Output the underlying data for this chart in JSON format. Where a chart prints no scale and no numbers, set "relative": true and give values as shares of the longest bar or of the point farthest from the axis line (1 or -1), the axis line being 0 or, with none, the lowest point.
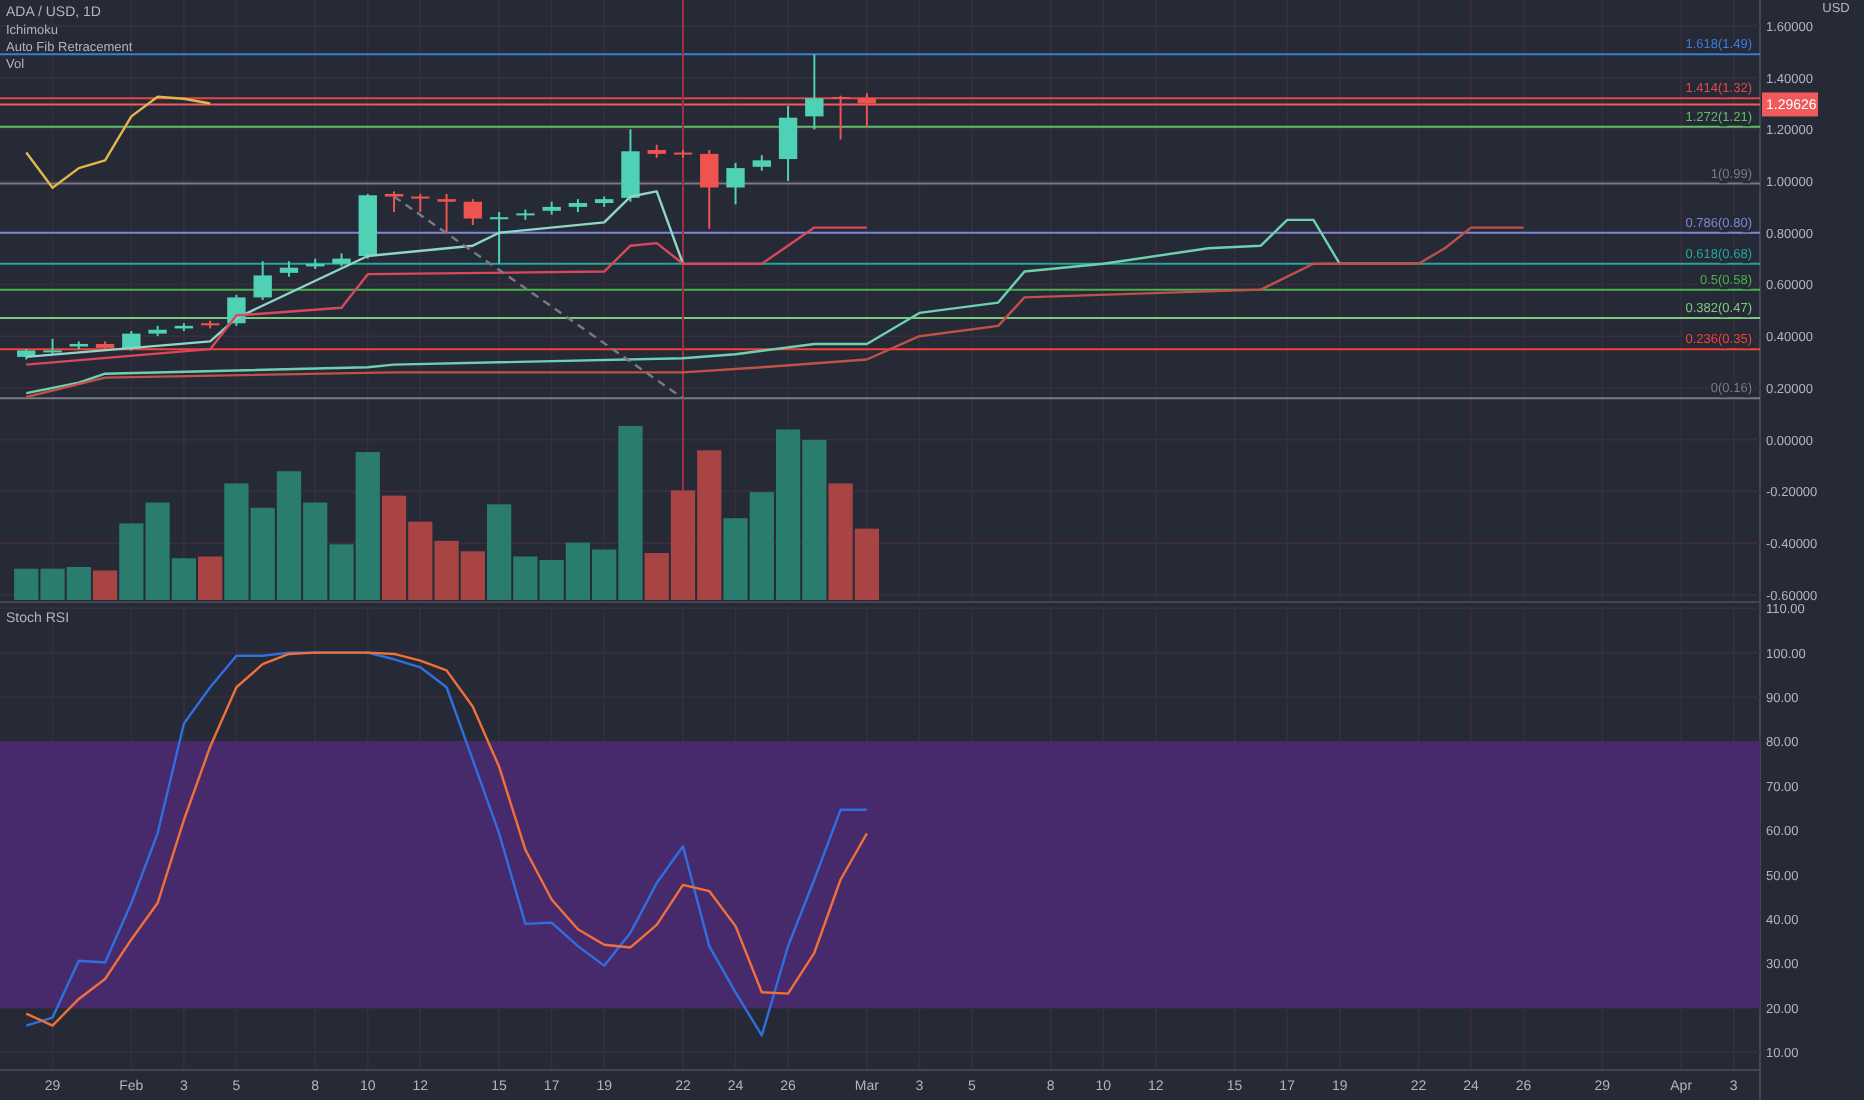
{
  "chart_data": [
    {
      "type": "candlestick",
      "title": "ADA / USD, 1D",
      "ylabel": "USD",
      "annotations": [
        "Ichimoku",
        "Auto Fib Retracement",
        "Vol"
      ],
      "x": [
        "--01-28",
        "--01-29",
        "--01-30",
        "--01-31",
        "--02-01",
        "--02-02",
        "--02-03",
        "--02-04",
        "--02-05",
        "--02-06",
        "--02-07",
        "--02-08",
        "--02-09",
        "--02-10",
        "--02-11",
        "--02-12",
        "--02-13",
        "--02-14",
        "--02-15",
        "--02-16",
        "--02-17",
        "--02-18",
        "--02-19",
        "--02-20",
        "--02-21",
        "--02-22",
        "--02-23",
        "--02-24",
        "--02-25",
        "--02-26",
        "--02-27",
        "--02-28",
        "--03-01"
      ],
      "ohlc": [
        [
          0.32,
          0.35,
          0.31,
          0.345
        ],
        [
          0.34,
          0.39,
          0.33,
          0.345
        ],
        [
          0.36,
          0.38,
          0.35,
          0.37
        ],
        [
          0.37,
          0.38,
          0.35,
          0.355
        ],
        [
          0.352,
          0.42,
          0.345,
          0.41
        ],
        [
          0.41,
          0.44,
          0.4,
          0.425
        ],
        [
          0.43,
          0.45,
          0.42,
          0.44
        ],
        [
          0.45,
          0.46,
          0.43,
          0.445
        ],
        [
          0.45,
          0.56,
          0.44,
          0.55
        ],
        [
          0.55,
          0.69,
          0.54,
          0.635
        ],
        [
          0.645,
          0.69,
          0.63,
          0.665
        ],
        [
          0.67,
          0.7,
          0.66,
          0.68
        ],
        [
          0.68,
          0.72,
          0.67,
          0.7
        ],
        [
          0.71,
          0.95,
          0.7,
          0.945
        ],
        [
          0.95,
          0.96,
          0.88,
          0.94
        ],
        [
          0.94,
          0.95,
          0.88,
          0.935
        ],
        [
          0.93,
          0.95,
          0.8,
          0.92
        ],
        [
          0.92,
          0.93,
          0.83,
          0.855
        ],
        [
          0.855,
          0.88,
          0.68,
          0.86
        ],
        [
          0.87,
          0.89,
          0.85,
          0.875
        ],
        [
          0.885,
          0.92,
          0.87,
          0.9
        ],
        [
          0.9,
          0.93,
          0.88,
          0.915
        ],
        [
          0.915,
          0.94,
          0.9,
          0.93
        ],
        [
          0.935,
          1.2,
          0.92,
          1.115
        ],
        [
          1.12,
          1.14,
          1.09,
          1.105
        ],
        [
          1.11,
          1.12,
          1.09,
          1.105
        ],
        [
          1.105,
          1.12,
          0.815,
          0.975
        ],
        [
          0.975,
          1.07,
          0.91,
          1.05
        ],
        [
          1.055,
          1.1,
          1.04,
          1.08
        ],
        [
          1.085,
          1.29,
          1.0,
          1.245
        ],
        [
          1.25,
          1.49,
          1.2,
          1.32
        ],
        [
          1.325,
          1.33,
          1.16,
          1.32
        ],
        [
          1.32,
          1.34,
          1.21,
          1.3
        ]
      ],
      "colors": [
        "#4fd1b5",
        "#4fd1b5",
        "#4fd1b5",
        "#ef5350",
        "#4fd1b5",
        "#4fd1b5",
        "#4fd1b5",
        "#ef5350",
        "#4fd1b5",
        "#4fd1b5",
        "#4fd1b5",
        "#4fd1b5",
        "#4fd1b5",
        "#4fd1b5",
        "#ef5350",
        "#ef5350",
        "#ef5350",
        "#ef5350",
        "#4fd1b5",
        "#4fd1b5",
        "#4fd1b5",
        "#4fd1b5",
        "#4fd1b5",
        "#4fd1b5",
        "#ef5350",
        "#ef5350",
        "#ef5350",
        "#4fd1b5",
        "#4fd1b5",
        "#4fd1b5",
        "#4fd1b5",
        "#ef5350",
        "#ef5350"
      ],
      "series": [
        {
          "type": "line",
          "color": "#e0b84a",
          "x": [
            "--01-28",
            "--01-29",
            "--01-30",
            "--01-31",
            "--02-01",
            "--02-02",
            "--02-03",
            "--02-04"
          ],
          "values": [
            1.11,
            0.974,
            1.05,
            1.08,
            1.25,
            1.326,
            1.318,
            1.3
          ]
        },
        {
          "type": "line",
          "color": "#8fd6c6",
          "x": [
            "--01-28",
            "--02-04",
            "--02-05",
            "--02-10",
            "--02-14",
            "--02-15",
            "--02-19",
            "--02-20",
            "--02-21",
            "--02-22"
          ],
          "values": [
            0.32,
            0.38,
            0.47,
            0.71,
            0.75,
            0.8,
            0.84,
            0.94,
            0.96,
            0.68
          ]
        },
        {
          "type": "line",
          "color": "#d9485a",
          "x": [
            "--01-28",
            "--02-04",
            "--02-05",
            "--02-09",
            "--02-10",
            "--02-19",
            "--02-20",
            "--02-21",
            "--02-22",
            "--02-25",
            "--02-27",
            "--03-01"
          ],
          "values": [
            0.29,
            0.35,
            0.48,
            0.51,
            0.64,
            0.65,
            0.75,
            0.76,
            0.68,
            0.68,
            0.82,
            0.82
          ]
        },
        {
          "type": "line",
          "color": "#6fd0b0",
          "x": [
            "--01-28",
            "--01-30",
            "--01-31",
            "--02-10",
            "--02-11",
            "--02-22",
            "--02-24",
            "--02-27",
            "--03-01",
            "--03-03",
            "--03-06",
            "--03-07",
            "--03-10",
            "--03-14",
            "--03-16",
            "--03-17",
            "--03-18",
            "--03-19",
            "--03-22"
          ],
          "values": [
            0.18,
            0.22,
            0.255,
            0.28,
            0.29,
            0.315,
            0.33,
            0.37,
            0.37,
            0.49,
            0.53,
            0.65,
            0.68,
            0.74,
            0.75,
            0.85,
            0.85,
            0.68,
            0.68
          ]
        },
        {
          "type": "line",
          "color": "#c0504a",
          "x": [
            "--01-28",
            "--01-31",
            "--02-11",
            "--02-22",
            "--02-25",
            "--03-01",
            "--03-03",
            "--03-06",
            "--03-07",
            "--03-16",
            "--03-18",
            "--03-22",
            "--03-23",
            "--03-24",
            "--03-26"
          ],
          "values": [
            0.165,
            0.24,
            0.26,
            0.26,
            0.28,
            0.31,
            0.4,
            0.44,
            0.55,
            0.58,
            0.68,
            0.68,
            0.74,
            0.82,
            0.82
          ]
        },
        {
          "type": "line",
          "color": "#787b86",
          "line_style": "dashed",
          "x": [
            "--02-11",
            "--02-22"
          ],
          "values": [
            0.94,
            0.16
          ]
        }
      ],
      "ref_lines": [
        {
          "axis": "y",
          "value": 1.49,
          "label": "1.618(1.49)",
          "color": "#3d7bd9"
        },
        {
          "axis": "y",
          "value": 1.32,
          "label": "1.414(1.32)",
          "color": "#e04848"
        },
        {
          "axis": "y",
          "value": 1.21,
          "label": "1.272(1.21)",
          "color": "#66bb6a"
        },
        {
          "axis": "y",
          "value": 0.99,
          "label": "1(0.99)",
          "color": "#787b86"
        },
        {
          "axis": "y",
          "value": 0.8,
          "label": "0.786(0.80)",
          "color": "#7e86d6"
        },
        {
          "axis": "y",
          "value": 0.68,
          "label": "0.618(0.68)",
          "color": "#26a69a"
        },
        {
          "axis": "y",
          "value": 0.58,
          "label": "0.5(0.58)",
          "color": "#4caf50"
        },
        {
          "axis": "y",
          "value": 0.47,
          "label": "0.382(0.47)",
          "color": "#81c784"
        },
        {
          "axis": "y",
          "value": 0.35,
          "label": "0.236(0.35)",
          "color": "#f44336"
        },
        {
          "axis": "y",
          "value": 0.16,
          "label": "0(0.16)",
          "color": "#787b86"
        },
        {
          "axis": "y",
          "value": 1.29626,
          "label": "1.29626",
          "color": "#f05a5a"
        },
        {
          "axis": "x",
          "value": "--02-22",
          "color": "#a03040"
        }
      ],
      "xlim": [
        "--01-27",
        "--04-04"
      ],
      "ylim": [
        -0.62,
        1.7
      ],
      "yticks": [
        {
          "value": 1.6,
          "label": "1.60000"
        },
        {
          "value": 1.4,
          "label": "1.40000"
        },
        {
          "value": 1.2,
          "label": "1.20000"
        },
        {
          "value": 1.0,
          "label": "1.00000"
        },
        {
          "value": 0.8,
          "label": "0.80000"
        },
        {
          "value": 0.6,
          "label": "0.60000"
        },
        {
          "value": 0.4,
          "label": "0.40000"
        },
        {
          "value": 0.2,
          "label": "0.20000"
        },
        {
          "value": 0,
          "label": "0.00000"
        },
        {
          "value": -0.2,
          "label": "-0.20000"
        },
        {
          "value": -0.4,
          "label": "-0.40000"
        },
        {
          "value": -0.6,
          "label": "-0.60000"
        }
      ],
      "tick_labels": "y",
      "grid": true
    },
    {
      "type": "bar",
      "relative": true,
      "tick_labels": false,
      "categories": [
        null,
        null,
        null,
        null,
        null,
        null,
        null,
        null,
        null,
        null,
        null,
        null,
        null,
        null,
        null,
        null,
        null,
        null,
        null,
        null,
        null,
        null,
        null,
        null,
        null,
        null,
        null,
        null,
        null,
        null,
        null,
        null,
        null
      ],
      "values": [
        0.18,
        0.18,
        0.19,
        0.17,
        0.44,
        0.56,
        0.24,
        0.25,
        0.67,
        0.53,
        0.74,
        0.56,
        0.32,
        0.85,
        0.6,
        0.45,
        0.34,
        0.28,
        0.55,
        0.25,
        0.23,
        0.33,
        0.29,
        1,
        0.27,
        0.63,
        0.86,
        0.47,
        0.62,
        0.98,
        0.92,
        0.67,
        0.41
      ],
      "colors": [
        "#2a7c6f",
        "#2a7c6f",
        "#2a7c6f",
        "#a84444",
        "#2a7c6f",
        "#2a7c6f",
        "#2a7c6f",
        "#a84444",
        "#2a7c6f",
        "#2a7c6f",
        "#2a7c6f",
        "#2a7c6f",
        "#2a7c6f",
        "#2a7c6f",
        "#a84444",
        "#a84444",
        "#a84444",
        "#a84444",
        "#2a7c6f",
        "#2a7c6f",
        "#2a7c6f",
        "#2a7c6f",
        "#2a7c6f",
        "#2a7c6f",
        "#a84444",
        "#a84444",
        "#a84444",
        "#2a7c6f",
        "#2a7c6f",
        "#2a7c6f",
        "#2a7c6f",
        "#a84444",
        "#a84444"
      ]
    },
    {
      "type": "line",
      "title": "Stoch RSI",
      "x": [
        "--01-28",
        "--01-29",
        "--01-30",
        "--01-31",
        "--02-01",
        "--02-02",
        "--02-03",
        "--02-04",
        "--02-05",
        "--02-06",
        "--02-07",
        "--02-08",
        "--02-09",
        "--02-10",
        "--02-11",
        "--02-12",
        "--02-13",
        "--02-14",
        "--02-15",
        "--02-16",
        "--02-17",
        "--02-18",
        "--02-19",
        "--02-20",
        "--02-21",
        "--02-22",
        "--02-23",
        "--02-24",
        "--02-25",
        "--02-26",
        "--02-27",
        "--02-28",
        "--03-01"
      ],
      "series": [
        {
          "color": "#2f6fe0",
          "values": [
            16,
            17.8,
            30.6,
            30.2,
            43.6,
            59.3,
            84,
            92.2,
            99.3,
            99.3,
            100,
            100,
            100,
            100,
            98.5,
            96.7,
            92.2,
            75.8,
            59.3,
            38.9,
            39.2,
            33.9,
            29.5,
            36.9,
            48.1,
            56.4,
            33.9,
            23.5,
            13.8,
            33.9,
            48.9,
            64.6,
            64.6
          ]
        },
        {
          "color": "#f0703a",
          "values": [
            18.7,
            16,
            22,
            26.5,
            35.4,
            43.6,
            62.3,
            78.8,
            92.2,
            97.4,
            99.7,
            100,
            100,
            100,
            99.7,
            98.2,
            96,
            87.8,
            74.3,
            55.6,
            44.4,
            37.7,
            34.2,
            33.6,
            38.7,
            47.7,
            46.3,
            38.4,
            23.5,
            23.2,
            32.4,
            48.9,
            59.3
          ]
        }
      ],
      "bands": [
        {
          "axis": "y",
          "from": 20,
          "to": 80,
          "color": "#4b2a72"
        }
      ],
      "xlim": [
        "--01-27",
        "--04-04"
      ],
      "ylim": [
        6,
        110.5
      ],
      "yticks": [
        {
          "value": 110,
          "label": "110.00"
        },
        {
          "value": 100,
          "label": "100.00"
        },
        {
          "value": 90,
          "label": "90.00"
        },
        {
          "value": 80,
          "label": "80.00"
        },
        {
          "value": 70,
          "label": "70.00"
        },
        {
          "value": 60,
          "label": "60.00"
        },
        {
          "value": 50,
          "label": "50.00"
        },
        {
          "value": 40,
          "label": "40.00"
        },
        {
          "value": 30,
          "label": "30.00"
        },
        {
          "value": 20,
          "label": "20.00"
        },
        {
          "value": 10,
          "label": "10.00"
        }
      ],
      "xticks": [
        {
          "value": "--01-29",
          "label": "29"
        },
        {
          "value": "--02-01",
          "label": "Feb"
        },
        {
          "value": "--02-03",
          "label": "3"
        },
        {
          "value": "--02-05",
          "label": "5"
        },
        {
          "value": "--02-08",
          "label": "8"
        },
        {
          "value": "--02-10",
          "label": "10"
        },
        {
          "value": "--02-12",
          "label": "12"
        },
        {
          "value": "--02-15",
          "label": "15"
        },
        {
          "value": "--02-17",
          "label": "17"
        },
        {
          "value": "--02-19",
          "label": "19"
        },
        {
          "value": "--02-22",
          "label": "22"
        },
        {
          "value": "--02-24",
          "label": "24"
        },
        {
          "value": "--02-26",
          "label": "26"
        },
        {
          "value": "--03-01",
          "label": "Mar"
        },
        {
          "value": "--03-03",
          "label": "3"
        },
        {
          "value": "--03-05",
          "label": "5"
        },
        {
          "value": "--03-08",
          "label": "8"
        },
        {
          "value": "--03-10",
          "label": "10"
        },
        {
          "value": "--03-12",
          "label": "12"
        },
        {
          "value": "--03-15",
          "label": "15"
        },
        {
          "value": "--03-17",
          "label": "17"
        },
        {
          "value": "--03-19",
          "label": "19"
        },
        {
          "value": "--03-22",
          "label": "22"
        },
        {
          "value": "--03-24",
          "label": "24"
        },
        {
          "value": "--03-26",
          "label": "26"
        },
        {
          "value": "--03-29",
          "label": "29"
        },
        {
          "value": "--04-01",
          "label": "Apr"
        },
        {
          "value": "--04-03",
          "label": "3"
        }
      ],
      "grid": true
    }
  ]
}
